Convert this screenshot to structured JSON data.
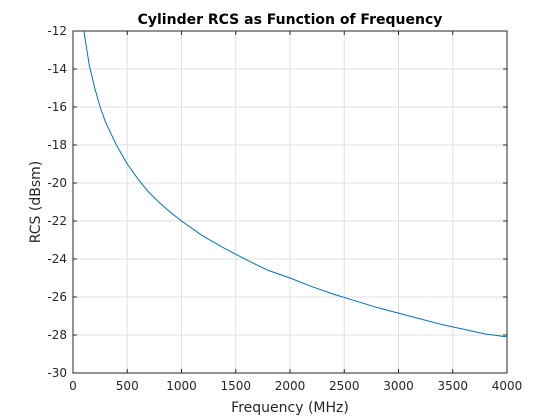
{
  "chart_data": {
    "type": "line",
    "title": "Cylinder RCS as Function of Frequency",
    "xlabel": "Frequency (MHz)",
    "ylabel": "RCS (dBsm)",
    "xlim": [
      0,
      4000
    ],
    "ylim": [
      -30,
      -12
    ],
    "xticks": [
      0,
      500,
      1000,
      1500,
      2000,
      2500,
      3000,
      3500,
      4000
    ],
    "yticks": [
      -30,
      -28,
      -26,
      -24,
      -22,
      -20,
      -18,
      -16,
      -14,
      -12
    ],
    "grid": true,
    "series": [
      {
        "color": "#0072bd",
        "x": [
          100,
          150,
          200,
          250,
          300,
          400,
          500,
          600,
          700,
          800,
          900,
          1000,
          1200,
          1400,
          1600,
          1800,
          2000,
          2200,
          2400,
          2600,
          2800,
          3000,
          3200,
          3400,
          3600,
          3800,
          4000
        ],
        "y": [
          -12.0,
          -13.8,
          -15.0,
          -16.0,
          -16.8,
          -18.0,
          -19.0,
          -19.8,
          -20.5,
          -21.05,
          -21.55,
          -22.0,
          -22.8,
          -23.45,
          -24.05,
          -24.6,
          -25.0,
          -25.45,
          -25.85,
          -26.2,
          -26.55,
          -26.85,
          -27.15,
          -27.45,
          -27.7,
          -27.95,
          -28.1
        ]
      }
    ]
  }
}
